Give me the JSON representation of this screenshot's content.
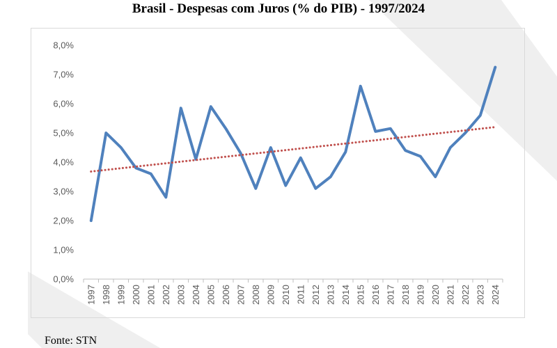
{
  "chart_data": {
    "type": "line",
    "title": "Brasil - Despesas com Juros (% do PIB) - 1997/2024",
    "xlabel": "",
    "ylabel": "",
    "categories": [
      "1997",
      "1998",
      "1999",
      "2000",
      "2001",
      "2002",
      "2003",
      "2004",
      "2005",
      "2006",
      "2007",
      "2008",
      "2009",
      "2010",
      "2011",
      "2012",
      "2013",
      "2014",
      "2015",
      "2016",
      "2017",
      "2018",
      "2019",
      "2020",
      "2021",
      "2022",
      "2023",
      "2024"
    ],
    "series": [
      {
        "values": [
          2.0,
          5.0,
          4.5,
          3.8,
          3.6,
          2.8,
          5.85,
          4.1,
          5.9,
          5.15,
          4.3,
          3.1,
          4.5,
          3.2,
          4.15,
          3.1,
          3.5,
          4.35,
          6.6,
          5.05,
          5.15,
          4.4,
          4.2,
          3.5,
          4.5,
          5.0,
          5.6,
          7.25
        ],
        "color": "#4f81bd",
        "style": "solid"
      },
      {
        "type": "trendline",
        "values_start": 3.68,
        "values_end": 5.2,
        "color": "#c0504d",
        "style": "dotted"
      }
    ],
    "yticks": [
      "0,0%",
      "1,0%",
      "2,0%",
      "3,0%",
      "4,0%",
      "5,0%",
      "6,0%",
      "7,0%",
      "8,0%"
    ],
    "ylim": [
      0,
      8
    ],
    "grid": false,
    "legend": "none"
  },
  "source": "Fonte: STN",
  "colors": {
    "line": "#4f81bd",
    "trend": "#c0504d",
    "watermark": "#ececec"
  }
}
